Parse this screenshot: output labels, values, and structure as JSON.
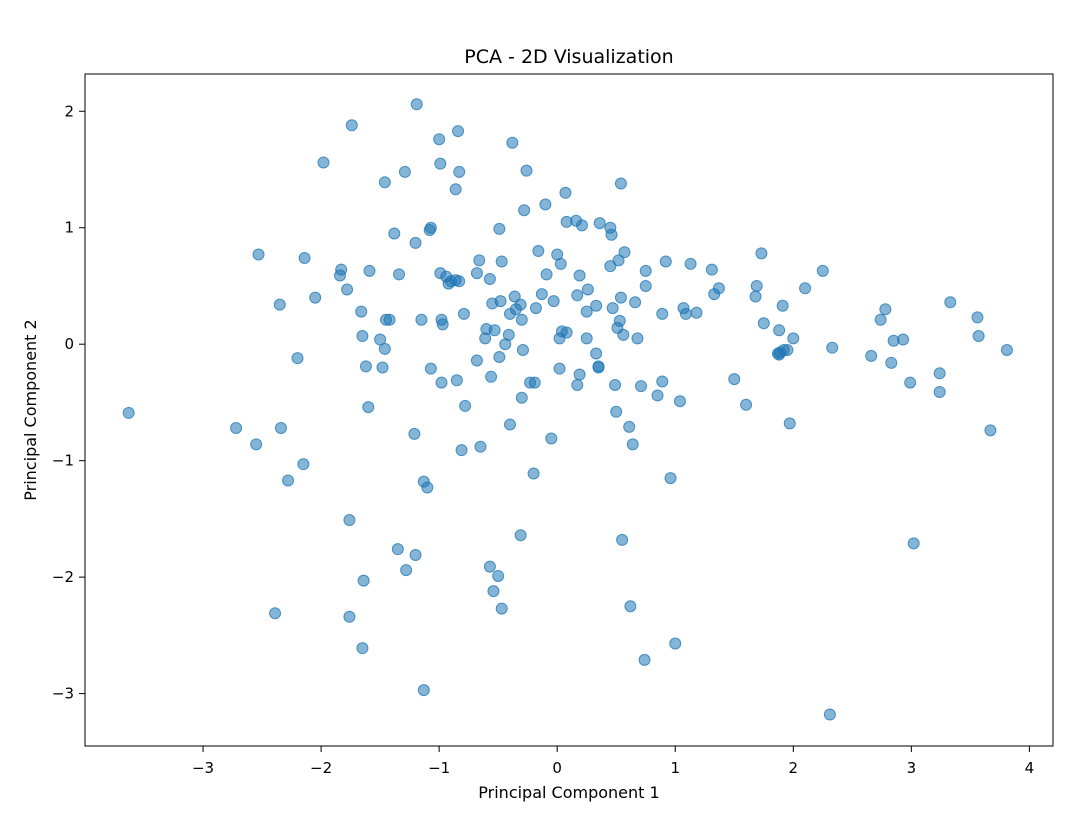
{
  "chart_data": {
    "type": "scatter",
    "title": "PCA - 2D Visualization",
    "xlabel": "Principal Component 1",
    "ylabel": "Principal Component 2",
    "xlim": [
      -4.0,
      4.2
    ],
    "ylim": [
      -3.45,
      2.32
    ],
    "xticks": [
      -3,
      -2,
      -1,
      0,
      1,
      2,
      3,
      4
    ],
    "yticks": [
      -3,
      -2,
      -1,
      0,
      1,
      2
    ],
    "xtick_labels": [
      "−3",
      "−2",
      "−1",
      "0",
      "1",
      "2",
      "3",
      "4"
    ],
    "ytick_labels": [
      "−3",
      "−2",
      "−1",
      "0",
      "1",
      "2"
    ],
    "grid": false,
    "legend": "none",
    "marker_color": "#1f77b4",
    "marker_alpha": 0.55,
    "points": [
      [
        -3.63,
        -0.59
      ],
      [
        -2.72,
        -0.72
      ],
      [
        -2.55,
        -0.86
      ],
      [
        -2.53,
        0.77
      ],
      [
        -2.39,
        -2.31
      ],
      [
        -2.35,
        0.34
      ],
      [
        -2.34,
        -0.72
      ],
      [
        -2.28,
        -1.17
      ],
      [
        -2.2,
        -0.12
      ],
      [
        -2.15,
        -1.03
      ],
      [
        -2.14,
        0.74
      ],
      [
        -2.05,
        0.4
      ],
      [
        -1.98,
        1.56
      ],
      [
        -1.84,
        0.59
      ],
      [
        -1.83,
        0.64
      ],
      [
        -1.78,
        0.47
      ],
      [
        -1.76,
        -1.51
      ],
      [
        -1.76,
        -2.34
      ],
      [
        -1.74,
        1.88
      ],
      [
        -1.66,
        0.28
      ],
      [
        -1.65,
        0.07
      ],
      [
        -1.65,
        -2.61
      ],
      [
        -1.64,
        -2.03
      ],
      [
        -1.62,
        -0.19
      ],
      [
        -1.6,
        -0.54
      ],
      [
        -1.59,
        0.63
      ],
      [
        -1.5,
        0.04
      ],
      [
        -1.48,
        -0.2
      ],
      [
        -1.46,
        1.39
      ],
      [
        -1.46,
        -0.04
      ],
      [
        -1.45,
        0.21
      ],
      [
        -1.42,
        0.21
      ],
      [
        -1.38,
        0.95
      ],
      [
        -1.35,
        -1.76
      ],
      [
        -1.34,
        0.6
      ],
      [
        -1.29,
        1.48
      ],
      [
        -1.28,
        -1.94
      ],
      [
        -1.21,
        -0.77
      ],
      [
        -1.2,
        -1.81
      ],
      [
        -1.2,
        0.87
      ],
      [
        -1.19,
        2.06
      ],
      [
        -1.15,
        0.21
      ],
      [
        -1.13,
        -2.97
      ],
      [
        -1.13,
        -1.18
      ],
      [
        -1.1,
        -1.23
      ],
      [
        -1.08,
        0.98
      ],
      [
        -1.07,
        1.0
      ],
      [
        -1.07,
        -0.21
      ],
      [
        -1.0,
        1.76
      ],
      [
        -0.99,
        1.55
      ],
      [
        -0.99,
        0.61
      ],
      [
        -0.98,
        0.21
      ],
      [
        -0.98,
        -0.33
      ],
      [
        -0.97,
        0.17
      ],
      [
        -0.94,
        0.58
      ],
      [
        -0.92,
        0.52
      ],
      [
        -0.9,
        0.54
      ],
      [
        -0.86,
        1.33
      ],
      [
        -0.86,
        0.55
      ],
      [
        -0.85,
        -0.31
      ],
      [
        -0.84,
        1.83
      ],
      [
        -0.83,
        0.54
      ],
      [
        -0.83,
        1.48
      ],
      [
        -0.81,
        -0.91
      ],
      [
        -0.79,
        0.26
      ],
      [
        -0.78,
        -0.53
      ],
      [
        -0.68,
        0.61
      ],
      [
        -0.68,
        -0.14
      ],
      [
        -0.66,
        0.72
      ],
      [
        -0.65,
        -0.88
      ],
      [
        -0.61,
        0.05
      ],
      [
        -0.6,
        0.13
      ],
      [
        -0.57,
        0.56
      ],
      [
        -0.57,
        -1.91
      ],
      [
        -0.56,
        -0.28
      ],
      [
        -0.55,
        0.35
      ],
      [
        -0.54,
        -2.12
      ],
      [
        -0.53,
        0.12
      ],
      [
        -0.5,
        -1.99
      ],
      [
        -0.49,
        0.99
      ],
      [
        -0.49,
        -0.11
      ],
      [
        -0.48,
        0.37
      ],
      [
        -0.47,
        -2.27
      ],
      [
        -0.47,
        0.71
      ],
      [
        -0.44,
        0.0
      ],
      [
        -0.41,
        0.08
      ],
      [
        -0.4,
        -0.69
      ],
      [
        -0.4,
        0.26
      ],
      [
        -0.38,
        1.73
      ],
      [
        -0.36,
        0.41
      ],
      [
        -0.35,
        0.3
      ],
      [
        -0.31,
        -1.64
      ],
      [
        -0.31,
        0.34
      ],
      [
        -0.3,
        0.21
      ],
      [
        -0.3,
        -0.46
      ],
      [
        -0.29,
        -0.05
      ],
      [
        -0.28,
        1.15
      ],
      [
        -0.26,
        1.49
      ],
      [
        -0.23,
        -0.33
      ],
      [
        -0.2,
        -1.11
      ],
      [
        -0.19,
        -0.33
      ],
      [
        -0.18,
        0.31
      ],
      [
        -0.16,
        0.8
      ],
      [
        -0.13,
        0.43
      ],
      [
        -0.1,
        1.2
      ],
      [
        -0.09,
        0.6
      ],
      [
        -0.05,
        -0.81
      ],
      [
        -0.03,
        0.37
      ],
      [
        0.0,
        0.77
      ],
      [
        0.02,
        -0.21
      ],
      [
        0.02,
        0.05
      ],
      [
        0.03,
        0.69
      ],
      [
        0.04,
        0.11
      ],
      [
        0.07,
        1.3
      ],
      [
        0.08,
        0.1
      ],
      [
        0.08,
        1.05
      ],
      [
        0.16,
        1.06
      ],
      [
        0.17,
        -0.35
      ],
      [
        0.17,
        0.42
      ],
      [
        0.19,
        -0.26
      ],
      [
        0.19,
        0.59
      ],
      [
        0.21,
        1.02
      ],
      [
        0.25,
        0.28
      ],
      [
        0.25,
        0.05
      ],
      [
        0.26,
        0.47
      ],
      [
        0.33,
        -0.08
      ],
      [
        0.33,
        0.33
      ],
      [
        0.35,
        -0.2
      ],
      [
        0.35,
        -0.19
      ],
      [
        0.36,
        1.04
      ],
      [
        0.45,
        1.0
      ],
      [
        0.45,
        0.67
      ],
      [
        0.46,
        0.94
      ],
      [
        0.47,
        0.31
      ],
      [
        0.49,
        -0.35
      ],
      [
        0.5,
        -0.58
      ],
      [
        0.51,
        0.14
      ],
      [
        0.52,
        0.72
      ],
      [
        0.53,
        0.2
      ],
      [
        0.54,
        1.38
      ],
      [
        0.54,
        0.4
      ],
      [
        0.55,
        -1.68
      ],
      [
        0.56,
        0.08
      ],
      [
        0.57,
        0.79
      ],
      [
        0.61,
        -0.71
      ],
      [
        0.62,
        -2.25
      ],
      [
        0.64,
        -0.86
      ],
      [
        0.66,
        0.36
      ],
      [
        0.68,
        0.05
      ],
      [
        0.71,
        -0.36
      ],
      [
        0.74,
        -2.71
      ],
      [
        0.75,
        0.5
      ],
      [
        0.75,
        0.63
      ],
      [
        0.85,
        -0.44
      ],
      [
        0.89,
        -0.32
      ],
      [
        0.89,
        0.26
      ],
      [
        0.92,
        0.71
      ],
      [
        0.96,
        -1.15
      ],
      [
        1.0,
        -2.57
      ],
      [
        1.04,
        -0.49
      ],
      [
        1.07,
        0.31
      ],
      [
        1.09,
        0.26
      ],
      [
        1.13,
        0.69
      ],
      [
        1.18,
        0.27
      ],
      [
        1.31,
        0.64
      ],
      [
        1.33,
        0.43
      ],
      [
        1.37,
        0.48
      ],
      [
        1.5,
        -0.3
      ],
      [
        1.6,
        -0.52
      ],
      [
        1.68,
        0.41
      ],
      [
        1.69,
        0.5
      ],
      [
        1.73,
        0.78
      ],
      [
        1.75,
        0.18
      ],
      [
        1.87,
        -0.08
      ],
      [
        1.88,
        -0.09
      ],
      [
        1.88,
        0.12
      ],
      [
        1.89,
        -0.07
      ],
      [
        1.91,
        0.33
      ],
      [
        1.92,
        -0.05
      ],
      [
        1.95,
        -0.05
      ],
      [
        1.97,
        -0.68
      ],
      [
        2.0,
        0.05
      ],
      [
        2.1,
        0.48
      ],
      [
        2.25,
        0.63
      ],
      [
        2.31,
        -3.18
      ],
      [
        2.33,
        -0.03
      ],
      [
        2.66,
        -0.1
      ],
      [
        2.74,
        0.21
      ],
      [
        2.78,
        0.3
      ],
      [
        2.83,
        -0.16
      ],
      [
        2.85,
        0.03
      ],
      [
        2.93,
        0.04
      ],
      [
        2.99,
        -0.33
      ],
      [
        3.02,
        -1.71
      ],
      [
        3.24,
        -0.25
      ],
      [
        3.24,
        -0.41
      ],
      [
        3.33,
        0.36
      ],
      [
        3.56,
        0.23
      ],
      [
        3.57,
        0.07
      ],
      [
        3.67,
        -0.74
      ],
      [
        3.81,
        -0.05
      ]
    ]
  }
}
